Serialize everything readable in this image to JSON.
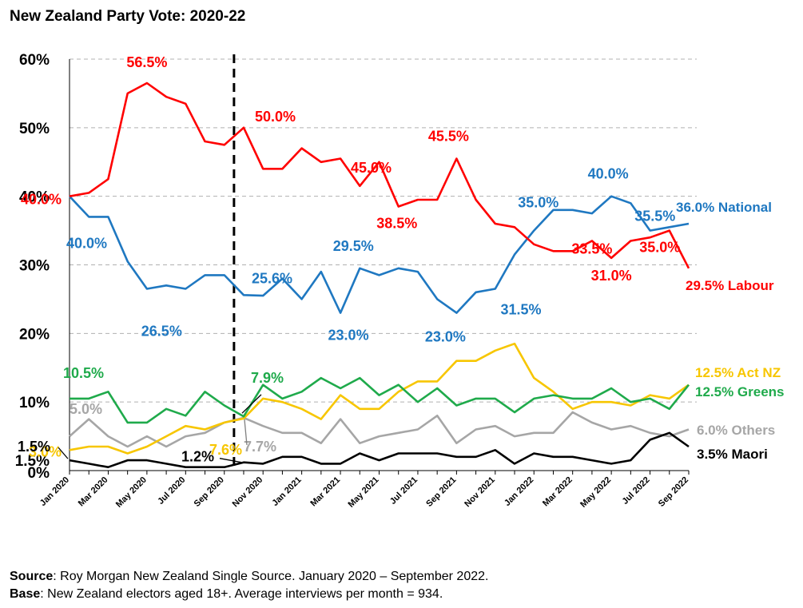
{
  "title": "New Zealand Party Vote: 2020-22",
  "footer": {
    "source_label": "Source",
    "source_text": ": Roy Morgan New Zealand Single Source. January 2020 – September 2022.",
    "base_label": "Base",
    "base_text": ": New Zealand electors aged 18+. Average interviews per month = 934."
  },
  "chart_data": {
    "type": "line",
    "title": "New Zealand Party Vote: 2020-22",
    "xlabel": "",
    "ylabel": "",
    "ylim": [
      0,
      60
    ],
    "y_ticks": [
      {
        "value": 0,
        "label": "0%"
      },
      {
        "value": 1.5,
        "label": "1.5%"
      },
      {
        "value": 10,
        "label": "10%"
      },
      {
        "value": 20,
        "label": "20%"
      },
      {
        "value": 30,
        "label": "30%"
      },
      {
        "value": 40,
        "label": "40%"
      },
      {
        "value": 50,
        "label": "50%"
      },
      {
        "value": 60,
        "label": "60%"
      }
    ],
    "categories": [
      "Jan 2020",
      "Feb 2020",
      "Mar 2020",
      "Apr 2020",
      "May 2020",
      "Jun 2020",
      "Jul 2020",
      "Aug 2020",
      "Sep 2020",
      "Oct 2020",
      "Nov 2020",
      "Dec 2020",
      "Jan 2021",
      "Feb 2021",
      "Mar 2021",
      "Apr 2021",
      "May 2021",
      "Jun 2021",
      "Jul 2021",
      "Aug 2021",
      "Sep 2021",
      "Oct 2021",
      "Nov 2021",
      "Dec 2021",
      "Jan 2022",
      "Feb 2022",
      "Mar 2022",
      "Apr 2022",
      "May 2022",
      "Jun 2022",
      "Jul 2022",
      "Aug 2022",
      "Sep 2022"
    ],
    "x_tick_labels": [
      "Jan 2020",
      "Mar 2020",
      "May 2020",
      "Jul 2020",
      "Sep 2020",
      "Nov 2020",
      "Jan 2021",
      "Mar 2021",
      "May 2021",
      "Jul 2021",
      "Sep 2021",
      "Nov 2021",
      "Jan 2022",
      "Mar 2022",
      "May 2022",
      "Jul 2022",
      "Sep 2022"
    ],
    "election_marker": {
      "between": [
        "Sep 2020",
        "Oct 2020"
      ],
      "style": "dashed"
    },
    "series": [
      {
        "name": "Labour",
        "color": "#ff0000",
        "end_label": "29.5% Labour",
        "values": [
          40.0,
          40.5,
          42.5,
          55.0,
          56.5,
          54.5,
          53.5,
          48.0,
          47.5,
          50.0,
          44.0,
          44.0,
          47.0,
          45.0,
          45.5,
          41.5,
          45.0,
          38.5,
          39.5,
          39.5,
          45.5,
          39.5,
          36.0,
          35.5,
          33.0,
          32.0,
          32.0,
          33.5,
          31.0,
          33.5,
          34.0,
          35.0,
          29.5
        ]
      },
      {
        "name": "National",
        "color": "#1f78c1",
        "end_label": "36.0% National",
        "values": [
          40.0,
          37.0,
          37.0,
          30.5,
          26.5,
          27.0,
          26.5,
          28.5,
          28.5,
          25.6,
          25.5,
          28.0,
          25.0,
          29.0,
          23.0,
          29.5,
          28.5,
          29.5,
          29.0,
          25.0,
          23.0,
          26.0,
          26.5,
          31.5,
          35.0,
          38.0,
          38.0,
          37.5,
          40.0,
          39.0,
          35.0,
          35.5,
          36.0
        ]
      },
      {
        "name": "Act NZ",
        "color": "#f7c600",
        "end_label": "12.5% Act NZ",
        "values": [
          3.0,
          3.5,
          3.5,
          2.5,
          3.5,
          5.0,
          6.5,
          6.0,
          7.0,
          7.6,
          10.5,
          10.0,
          9.0,
          7.5,
          11.0,
          9.0,
          9.0,
          11.5,
          13.0,
          13.0,
          16.0,
          16.0,
          17.5,
          18.5,
          13.5,
          11.5,
          9.0,
          10.0,
          10.0,
          9.5,
          11.0,
          10.5,
          12.5
        ]
      },
      {
        "name": "Greens",
        "color": "#1faa4b",
        "end_label": "12.5% Greens",
        "values": [
          10.5,
          10.5,
          11.5,
          7.0,
          7.0,
          9.0,
          8.0,
          11.5,
          9.5,
          7.9,
          12.5,
          10.5,
          11.5,
          13.5,
          12.0,
          13.5,
          11.0,
          12.5,
          10.0,
          12.0,
          9.5,
          10.5,
          10.5,
          8.5,
          10.5,
          11.0,
          10.5,
          10.5,
          12.0,
          10.0,
          10.5,
          9.0,
          12.5
        ]
      },
      {
        "name": "Others",
        "color": "#a6a6a6",
        "end_label": "6.0% Others",
        "values": [
          5.0,
          7.5,
          5.0,
          3.5,
          5.0,
          3.5,
          5.0,
          5.5,
          7.0,
          7.7,
          6.5,
          5.5,
          5.5,
          4.0,
          7.5,
          4.0,
          5.0,
          5.5,
          6.0,
          8.0,
          4.0,
          6.0,
          6.5,
          5.0,
          5.5,
          5.5,
          8.5,
          7.0,
          6.0,
          6.5,
          5.5,
          5.0,
          6.0
        ]
      },
      {
        "name": "Maori",
        "color": "#000000",
        "end_label": "3.5% Maori",
        "values": [
          1.5,
          1.0,
          0.5,
          1.5,
          1.5,
          1.0,
          0.5,
          0.5,
          0.5,
          1.2,
          1.0,
          2.0,
          2.0,
          1.0,
          1.0,
          2.5,
          1.5,
          2.5,
          2.5,
          2.5,
          2.0,
          2.0,
          3.0,
          1.0,
          2.5,
          2.0,
          2.0,
          1.5,
          1.0,
          1.5,
          4.5,
          5.5,
          3.5
        ]
      }
    ],
    "annotations": [
      {
        "series": "Labour",
        "index": 0,
        "text": "40.0%"
      },
      {
        "series": "Labour",
        "index": 4,
        "text": "56.5%"
      },
      {
        "series": "Labour",
        "index": 9,
        "text": "50.0%"
      },
      {
        "series": "Labour",
        "index": 16,
        "text": "45.0%"
      },
      {
        "series": "Labour",
        "index": 17,
        "text": "38.5%"
      },
      {
        "series": "Labour",
        "index": 20,
        "text": "45.5%"
      },
      {
        "series": "Labour",
        "index": 27,
        "text": "33.5%"
      },
      {
        "series": "Labour",
        "index": 28,
        "text": "31.0%"
      },
      {
        "series": "Labour",
        "index": 31,
        "text": "35.0%"
      },
      {
        "series": "National",
        "index": 0,
        "text": "40.0%"
      },
      {
        "series": "National",
        "index": 6,
        "text": "26.5%"
      },
      {
        "series": "National",
        "index": 9,
        "text": "25.6%"
      },
      {
        "series": "National",
        "index": 14,
        "text": "23.0%"
      },
      {
        "series": "National",
        "index": 15,
        "text": "29.5%"
      },
      {
        "series": "National",
        "index": 20,
        "text": "23.0%"
      },
      {
        "series": "National",
        "index": 23,
        "text": "31.5%"
      },
      {
        "series": "National",
        "index": 24,
        "text": "35.0%"
      },
      {
        "series": "National",
        "index": 28,
        "text": "40.0%"
      },
      {
        "series": "National",
        "index": 31,
        "text": "35.5%"
      },
      {
        "series": "Greens",
        "index": 0,
        "text": "10.5%"
      },
      {
        "series": "Greens",
        "index": 9,
        "text": "7.9%"
      },
      {
        "series": "Act NZ",
        "index": 0,
        "text": "3.0%"
      },
      {
        "series": "Act NZ",
        "index": 9,
        "text": "7.6%"
      },
      {
        "series": "Others",
        "index": 0,
        "text": "5.0%"
      },
      {
        "series": "Others",
        "index": 9,
        "text": "7.7%"
      },
      {
        "series": "Maori",
        "index": 0,
        "text": "1.5%"
      },
      {
        "series": "Maori",
        "index": 9,
        "text": "1.2%"
      }
    ]
  }
}
